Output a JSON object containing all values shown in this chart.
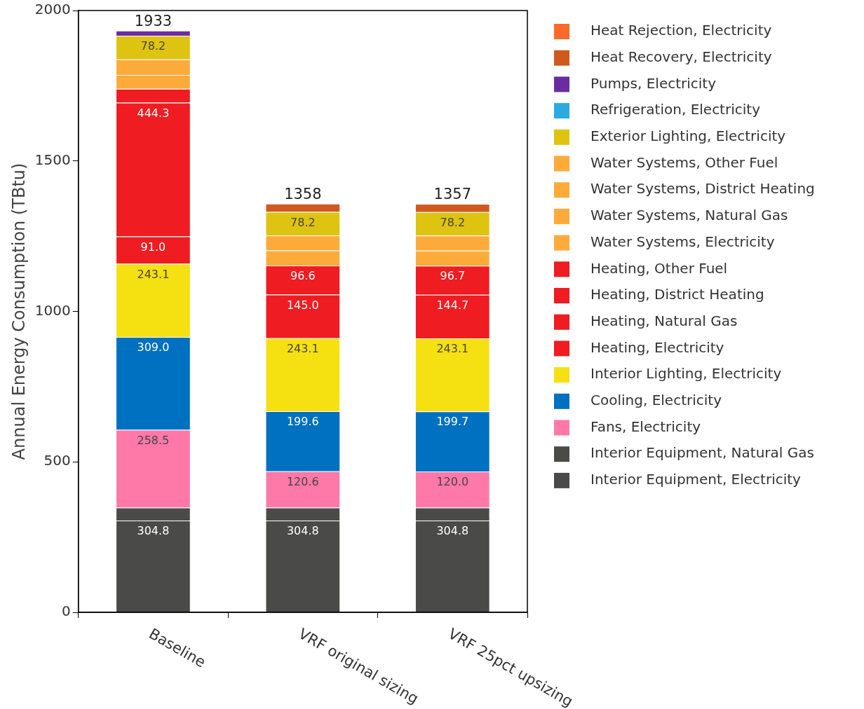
{
  "chart_data": {
    "type": "bar",
    "stacked": true,
    "ylabel": "Annual Energy Consumption (TBtu)",
    "categories": [
      "Baseline",
      "VRF original sizing",
      "VRF 25pct upsizing"
    ],
    "ylim": [
      0,
      2000
    ],
    "yticks": [
      0,
      500,
      1000,
      1500,
      2000
    ],
    "grid": false,
    "legend": "top right",
    "totals": [
      "1933",
      "1358",
      "1357"
    ],
    "series": [
      {
        "name": "Interior Equipment, Electricity",
        "color": "#4a4b49",
        "values": [
          304.8,
          304.8,
          304.8
        ],
        "value_labels": [
          "304.8",
          "304.8",
          "304.8"
        ]
      },
      {
        "name": "Interior Equipment, Natural Gas",
        "color": "#4a4b49",
        "values": [
          43,
          43,
          43
        ]
      },
      {
        "name": "Fans, Electricity",
        "color": "#ff79a8",
        "values": [
          258.5,
          120.6,
          120.0
        ],
        "value_labels": [
          "258.5",
          "120.6",
          "120.0"
        ]
      },
      {
        "name": "Cooling, Electricity",
        "color": "#0070c0",
        "values": [
          309.0,
          199.6,
          199.7
        ],
        "value_labels": [
          "309.0",
          "199.6",
          "199.7"
        ]
      },
      {
        "name": "Interior Lighting, Electricity",
        "color": "#f5e011",
        "values": [
          243.1,
          243.1,
          243.1
        ],
        "value_labels": [
          "243.1",
          "243.1",
          "243.1"
        ]
      },
      {
        "name": "Heating, Electricity",
        "color": "#ef1c21",
        "values": [
          91.0,
          145.0,
          144.7
        ],
        "value_labels": [
          "91.0",
          "145.0",
          "144.7"
        ]
      },
      {
        "name": "Heating, Natural Gas",
        "color": "#ef1c21",
        "values": [
          444.3,
          96.6,
          96.7
        ],
        "value_labels": [
          "444.3",
          "96.6",
          "96.7"
        ]
      },
      {
        "name": "Heating, District Heating",
        "color": "#ef1c21",
        "values": [
          null,
          null,
          null
        ]
      },
      {
        "name": "Heating, Other Fuel",
        "color": "#ef1c21",
        "values": [
          46,
          null,
          null
        ]
      },
      {
        "name": "Water Systems, Electricity",
        "color": "#fcab3b",
        "values": [
          46,
          50,
          50
        ]
      },
      {
        "name": "Water Systems, Natural Gas",
        "color": "#fcab3b",
        "values": [
          52,
          50,
          50
        ]
      },
      {
        "name": "Water Systems, District Heating",
        "color": "#fcab3b",
        "values": [
          null,
          null,
          null
        ]
      },
      {
        "name": "Water Systems, Other Fuel",
        "color": "#fcab3b",
        "values": [
          null,
          null,
          null
        ]
      },
      {
        "name": "Exterior Lighting, Electricity",
        "color": "#dec310",
        "values": [
          78.2,
          78.2,
          78.2
        ],
        "value_labels": [
          "78.2",
          "78.2",
          "78.2"
        ]
      },
      {
        "name": "Refrigeration, Electricity",
        "color": "#29aae1",
        "values": [
          null,
          null,
          null
        ]
      },
      {
        "name": "Pumps, Electricity",
        "color": "#6a2d9f",
        "values": [
          17,
          null,
          null
        ]
      },
      {
        "name": "Heat Recovery, Electricity",
        "color": "#d05a1e",
        "values": [
          null,
          27,
          27
        ]
      },
      {
        "name": "Heat Rejection, Electricity",
        "color": "#fb6a2a",
        "values": [
          null,
          null,
          null
        ]
      }
    ]
  }
}
